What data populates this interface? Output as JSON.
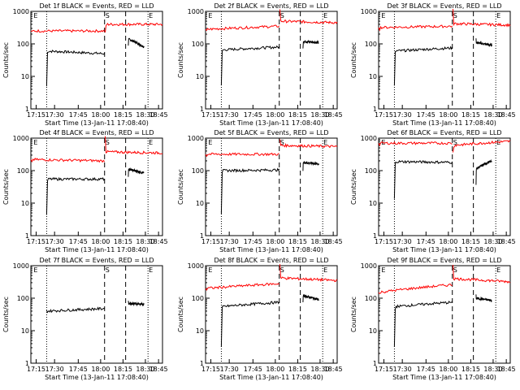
{
  "page": {
    "background": "#ffffff"
  },
  "chart_data": [
    {
      "type": "line",
      "title": "Det 1f BLACK = Events, RED = LLD",
      "ylabel": "Counts/sec",
      "xlabel": "Start Time (13-Jan-11 17:08:40)",
      "x_ticks": [
        "17:15",
        "17:30",
        "17:45",
        "18:00",
        "18:15",
        "18:30",
        "18:45"
      ],
      "y_ticks": [
        "1",
        "10",
        "100",
        "1000"
      ],
      "ylim": [
        1,
        1000
      ],
      "yscale": "log",
      "markers": [
        "E",
        "S",
        "E"
      ],
      "series": [
        {
          "color": "#000000",
          "segments": [
            [
              5,
              60,
              50
            ],
            [
              95,
              140,
              80
            ]
          ]
        },
        {
          "color": "#ff0000",
          "segments": [
            [
              1,
              250,
              250
            ],
            [
              210,
              400,
              400
            ]
          ]
        }
      ]
    },
    {
      "type": "line",
      "title": "Det 2f BLACK = Events, RED = LLD",
      "ylabel": "Counts/sec",
      "xlabel": "Start Time (13-Jan-11 17:08:40)",
      "x_ticks": [
        "17:15",
        "17:30",
        "17:45",
        "18:00",
        "18:15",
        "18:30",
        "18:45"
      ],
      "y_ticks": [
        "1",
        "10",
        "100",
        "1000"
      ],
      "ylim": [
        1,
        1000
      ],
      "yscale": "log",
      "markers": [
        "E",
        "S",
        "E"
      ],
      "series": [
        {
          "color": "#000000",
          "segments": [
            [
              5,
              65,
              80
            ],
            [
              70,
              120,
              110
            ]
          ]
        },
        {
          "color": "#ff0000",
          "segments": [
            [
              1,
              280,
              350
            ],
            [
              1200,
              500,
              450
            ]
          ]
        }
      ]
    },
    {
      "type": "line",
      "title": "Det 3f BLACK = Events, RED = LLD",
      "ylabel": "Counts/sec",
      "xlabel": "Start Time (13-Jan-11 17:08:40)",
      "x_ticks": [
        "17:15",
        "17:30",
        "17:45",
        "18:00",
        "18:15",
        "18:30",
        "18:45"
      ],
      "y_ticks": [
        "1",
        "10",
        "100",
        "1000"
      ],
      "ylim": [
        1,
        1000
      ],
      "yscale": "log",
      "markers": [
        "E",
        "S",
        "E"
      ],
      "series": [
        {
          "color": "#000000",
          "segments": [
            [
              5,
              60,
              75
            ],
            [
              160,
              110,
              90
            ]
          ]
        },
        {
          "color": "#ff0000",
          "segments": [
            [
              1,
              320,
              350
            ],
            [
              1100,
              420,
              380
            ]
          ]
        }
      ]
    },
    {
      "type": "line",
      "title": "Det 4f BLACK = Events, RED = LLD",
      "ylabel": "Counts/sec",
      "xlabel": "Start Time (13-Jan-11 17:08:40)",
      "x_ticks": [
        "17:15",
        "17:30",
        "17:45",
        "18:00",
        "18:15",
        "18:30",
        "18:45"
      ],
      "y_ticks": [
        "1",
        "10",
        "100",
        "1000"
      ],
      "ylim": [
        1,
        1000
      ],
      "yscale": "log",
      "markers": [
        "E",
        "S",
        "E"
      ],
      "series": [
        {
          "color": "#000000",
          "segments": [
            [
              4,
              55,
              55
            ],
            [
              60,
              110,
              85
            ]
          ]
        },
        {
          "color": "#ff0000",
          "segments": [
            [
              1,
              220,
              200
            ],
            [
              1200,
              380,
              350
            ]
          ]
        }
      ]
    },
    {
      "type": "line",
      "title": "Det 5f BLACK = Events, RED = LLD",
      "ylabel": "Counts/sec",
      "xlabel": "Start Time (13-Jan-11 17:08:40)",
      "x_ticks": [
        "17:15",
        "17:30",
        "17:45",
        "18:00",
        "18:15",
        "18:30",
        "18:45"
      ],
      "y_ticks": [
        "1",
        "10",
        "100",
        "1000"
      ],
      "ylim": [
        1,
        1000
      ],
      "yscale": "log",
      "markers": [
        "E",
        "S",
        "E"
      ],
      "series": [
        {
          "color": "#000000",
          "segments": [
            [
              5,
              100,
              105
            ],
            [
              100,
              180,
              160
            ]
          ]
        },
        {
          "color": "#ff0000",
          "segments": [
            [
              1,
              320,
              320
            ],
            [
              900,
              600,
              550
            ]
          ]
        }
      ]
    },
    {
      "type": "line",
      "title": "Det 6f BLACK = Events, RED = LLD",
      "ylabel": "Counts/sec",
      "xlabel": "Start Time (13-Jan-11 17:08:40)",
      "x_ticks": [
        "17:15",
        "17:30",
        "17:45",
        "18:00",
        "18:15",
        "18:30",
        "18:45"
      ],
      "y_ticks": [
        "1",
        "10",
        "100",
        "1000"
      ],
      "ylim": [
        1,
        1000
      ],
      "yscale": "log",
      "markers": [
        "E",
        "S",
        "E"
      ],
      "series": [
        {
          "color": "#000000",
          "segments": [
            [
              13,
              190,
              180
            ],
            [
              40,
              110,
              200
            ]
          ]
        },
        {
          "color": "#ff0000",
          "segments": [
            [
              1,
              700,
              700
            ],
            [
              350,
              600,
              800
            ]
          ]
        }
      ]
    },
    {
      "type": "line",
      "title": "Det 7f BLACK = Events, RED = LLD",
      "ylabel": "Counts/sec",
      "xlabel": "Start Time (13-Jan-11 17:08:40)",
      "x_ticks": [
        "17:15",
        "17:30",
        "17:45",
        "18:00",
        "18:15",
        "18:30",
        "18:45"
      ],
      "y_ticks": [
        "1",
        "10",
        "100",
        "1000"
      ],
      "ylim": [
        1,
        1000
      ],
      "yscale": "log",
      "markers": [
        "E",
        "S",
        "E"
      ],
      "series": [
        {
          "color": "#000000",
          "segments": [
            [
              40,
              40,
              48
            ],
            [
              90,
              70,
              65
            ]
          ]
        }
      ]
    },
    {
      "type": "line",
      "title": "Det 8f BLACK = Events, RED = LLD",
      "ylabel": "Counts/sec",
      "xlabel": "Start Time (13-Jan-11 17:08:40)",
      "x_ticks": [
        "17:15",
        "17:30",
        "17:45",
        "18:00",
        "18:15",
        "18:30",
        "18:45"
      ],
      "y_ticks": [
        "1",
        "10",
        "100",
        "1000"
      ],
      "ylim": [
        1,
        1000
      ],
      "yscale": "log",
      "markers": [
        "E",
        "S",
        "E"
      ],
      "series": [
        {
          "color": "#000000",
          "segments": [
            [
              3,
              55,
              75
            ],
            [
              80,
              120,
              90
            ]
          ]
        },
        {
          "color": "#ff0000",
          "segments": [
            [
              1,
              200,
              280
            ],
            [
              1100,
              420,
              350
            ]
          ]
        }
      ]
    },
    {
      "type": "line",
      "title": "Det 9f BLACK = Events, RED = LLD",
      "ylabel": "Counts/sec",
      "xlabel": "Start Time (13-Jan-11 17:08:40)",
      "x_ticks": [
        "17:15",
        "17:30",
        "17:45",
        "18:00",
        "18:15",
        "18:30",
        "18:45"
      ],
      "y_ticks": [
        "1",
        "10",
        "100",
        "1000"
      ],
      "ylim": [
        1,
        1000
      ],
      "yscale": "log",
      "markers": [
        "E",
        "S",
        "E"
      ],
      "series": [
        {
          "color": "#000000",
          "segments": [
            [
              3,
              55,
              75
            ],
            [
              120,
              100,
              85
            ]
          ]
        },
        {
          "color": "#ff0000",
          "segments": [
            [
              1,
              150,
              260
            ],
            [
              1100,
              400,
              320
            ]
          ]
        }
      ]
    }
  ]
}
